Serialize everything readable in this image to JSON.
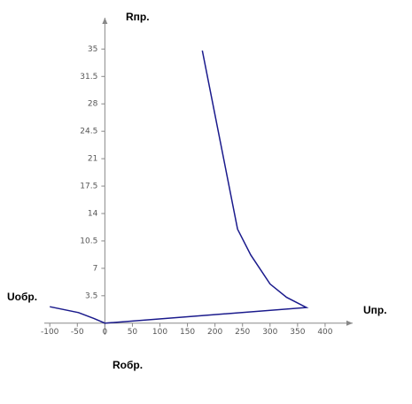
{
  "chart_data": {
    "type": "line",
    "x_label": "Uпр.",
    "x_label_negative": "Uобр.",
    "y_label": "Rпр.",
    "y_label_negative": "Rобр.",
    "x": [
      -100,
      -48,
      -20,
      0,
      366,
      330,
      300,
      265,
      241,
      177
    ],
    "series": [
      {
        "color": "#1a1a8c",
        "values": [
          2.1,
          1.35,
          0.6,
          0,
          2.0,
          3.3,
          5,
          8.7,
          12,
          34.8
        ]
      }
    ],
    "xlim": [
      -110,
      450
    ],
    "ylim": [
      -1.5,
      39
    ],
    "xticks": [
      -100,
      -50,
      0,
      50,
      100,
      150,
      200,
      250,
      300,
      350,
      400
    ],
    "yticks": [
      3.5,
      7,
      10.5,
      14,
      17.5,
      21,
      24.5,
      28,
      31.5,
      35
    ]
  }
}
